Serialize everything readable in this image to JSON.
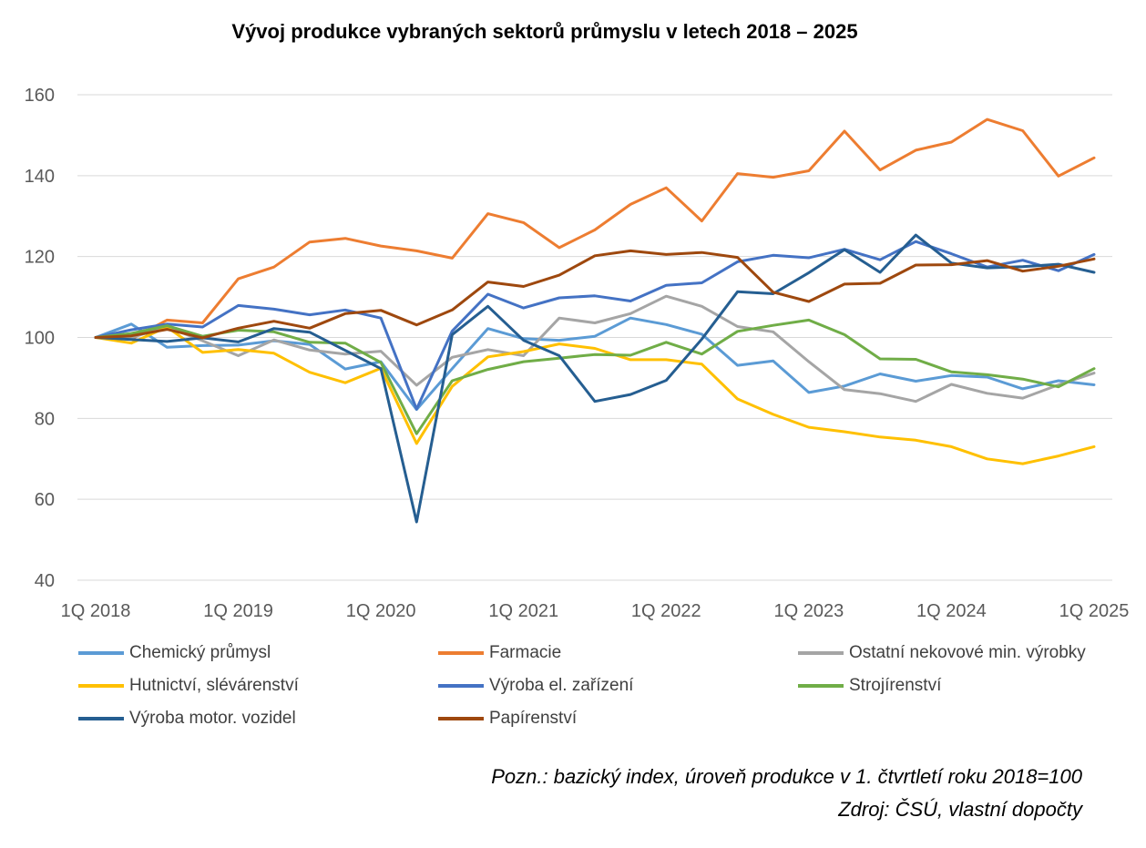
{
  "chart_data": {
    "type": "line",
    "title": "Vývoj produkce vybraných sektorů průmyslu v letech 2018 – 2025",
    "x_tick_labels": [
      "1Q 2018",
      "1Q 2019",
      "1Q 2020",
      "1Q 2021",
      "1Q 2022",
      "1Q 2023",
      "1Q 2024",
      "1Q 2025"
    ],
    "y_ticks": [
      40,
      60,
      80,
      100,
      120,
      140,
      160
    ],
    "ylim": [
      40,
      160
    ],
    "grid": true,
    "legend_position": "bottom",
    "x": [
      "1Q 2018",
      "2Q 2018",
      "3Q 2018",
      "4Q 2018",
      "1Q 2019",
      "2Q 2019",
      "3Q 2019",
      "4Q 2019",
      "1Q 2020",
      "2Q 2020",
      "3Q 2020",
      "4Q 2020",
      "1Q 2021",
      "2Q 2021",
      "3Q 2021",
      "4Q 2021",
      "1Q 2022",
      "2Q 2022",
      "3Q 2022",
      "4Q 2022",
      "1Q 2023",
      "2Q 2023",
      "3Q 2023",
      "4Q 2023",
      "1Q 2024",
      "2Q 2024",
      "3Q 2024",
      "4Q 2024",
      "1Q 2025"
    ],
    "series": [
      {
        "name": "Chemický průmysl",
        "color": "#5B9BD5",
        "values": [
          100,
          103.3,
          97.6,
          98.0,
          98.1,
          99.2,
          98.3,
          92.2,
          94.0,
          82.2,
          92.3,
          102.2,
          99.7,
          99.3,
          100.3,
          104.8,
          103.2,
          100.8,
          93.1,
          94.2,
          86.4,
          88.0,
          91.0,
          89.2,
          90.6,
          90.2,
          87.3,
          89.3,
          88.3
        ]
      },
      {
        "name": "Farmacie",
        "color": "#ED7D31",
        "values": [
          100,
          99.6,
          104.3,
          103.6,
          114.5,
          117.4,
          123.6,
          124.5,
          122.6,
          121.4,
          119.6,
          130.6,
          128.4,
          122.2,
          126.6,
          132.9,
          137.0,
          128.8,
          140.5,
          139.6,
          141.2,
          151.0,
          141.4,
          146.3,
          148.3,
          153.9,
          151.1,
          139.9,
          144.4
        ]
      },
      {
        "name": "Ostatní nekovové min. výrobky",
        "color": "#A5A5A5",
        "values": [
          100,
          100.0,
          102.6,
          99.2,
          95.5,
          99.4,
          96.9,
          95.9,
          96.6,
          88.2,
          95.1,
          97.0,
          95.5,
          104.8,
          103.6,
          105.9,
          110.2,
          107.7,
          102.7,
          101.4,
          94.0,
          87.1,
          86.1,
          84.2,
          88.4,
          86.2,
          85.0,
          88.3,
          91.2
        ]
      },
      {
        "name": "Hutnictví, slévárenství",
        "color": "#FFC000",
        "values": [
          100,
          98.6,
          102.6,
          96.3,
          97.0,
          96.1,
          91.4,
          88.8,
          92.4,
          73.8,
          87.9,
          95.2,
          96.5,
          98.4,
          97.3,
          94.5,
          94.5,
          93.4,
          84.8,
          81.0,
          77.8,
          76.7,
          75.4,
          74.6,
          73.0,
          70.0,
          68.8,
          70.7,
          73.0
        ]
      },
      {
        "name": "Výroba el. zařízení",
        "color": "#4472C4",
        "values": [
          100,
          101.9,
          103.3,
          102.6,
          107.9,
          107.0,
          105.6,
          106.8,
          104.8,
          82.3,
          101.6,
          110.7,
          107.3,
          109.8,
          110.3,
          109.0,
          112.9,
          113.5,
          118.7,
          120.3,
          119.7,
          121.8,
          119.2,
          123.7,
          120.7,
          117.4,
          119.1,
          116.5,
          120.5
        ]
      },
      {
        "name": "Strojírenství",
        "color": "#70AD47",
        "values": [
          100,
          101.0,
          102.9,
          100.3,
          101.8,
          101.4,
          98.8,
          98.6,
          93.8,
          76.2,
          89.3,
          92.1,
          94.0,
          94.9,
          95.8,
          95.6,
          98.8,
          95.9,
          101.5,
          103.0,
          104.3,
          100.7,
          94.7,
          94.6,
          91.5,
          90.8,
          89.7,
          87.8,
          92.3
        ]
      },
      {
        "name": "Výroba motor. vozidel",
        "color": "#255E91",
        "values": [
          100,
          99.5,
          99.0,
          99.9,
          98.9,
          102.2,
          101.3,
          96.8,
          92.3,
          54.4,
          100.7,
          107.7,
          99.3,
          95.5,
          84.2,
          85.9,
          89.4,
          99.6,
          111.3,
          110.8,
          116.0,
          121.7,
          116.1,
          125.3,
          118.4,
          117.2,
          117.5,
          118.1,
          116.1
        ]
      },
      {
        "name": "Papírenství",
        "color": "#9E480E",
        "values": [
          100,
          100.4,
          102.0,
          99.9,
          102.3,
          104.0,
          102.3,
          105.9,
          106.7,
          103.1,
          106.8,
          113.7,
          112.6,
          115.4,
          120.2,
          121.4,
          120.5,
          121.0,
          119.8,
          111.2,
          108.9,
          113.2,
          113.4,
          117.9,
          118.0,
          119.0,
          116.4,
          117.6,
          119.4
        ]
      }
    ]
  },
  "legend": [
    "Chemický průmysl",
    "Farmacie",
    "Ostatní nekovové min. výrobky",
    "Hutnictví, slévárenství",
    "Výroba el. zařízení",
    "Strojírenství",
    "Výroba motor. vozidel",
    "Papírenství"
  ],
  "note": {
    "line1": "Pozn.: bazický index, úroveň produkce v 1. čtvrtletí roku 2018=100",
    "line2": "Zdroj: ČSÚ, vlastní dopočty"
  }
}
